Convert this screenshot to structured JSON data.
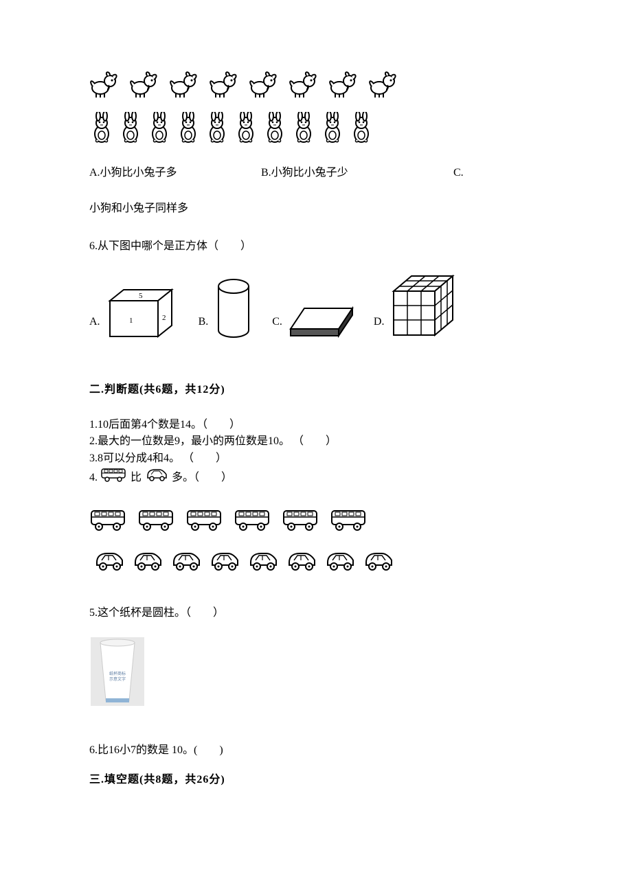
{
  "q5": {
    "dog_count": 8,
    "rabbit_count": 10,
    "opt_a": "A.小狗比小兔子多",
    "opt_b": "B.小狗比小兔子少",
    "opt_c_prefix": "C.",
    "opt_c_rest": "小狗和小兔子同样多"
  },
  "q6": {
    "text": "6.从下图中哪个是正方体（　　）",
    "labels": {
      "a": "A.",
      "b": "B.",
      "c": "C.",
      "d": "D."
    }
  },
  "section2": {
    "title": "二.判断题(共6题，共12分)",
    "q1": "1.10后面第4个数是14。（　　）",
    "q2": "2.最大的一位数是9，最小的两位数是10。 （　　）",
    "q3": "3.8可以分成4和4。 （　　）",
    "q4_prefix": "4.",
    "q4_mid": "比",
    "q4_suffix": "多。（　　）",
    "bus_count": 6,
    "car_count": 8,
    "q5": "5.这个纸杯是圆柱。（　　）",
    "q6": "6.比16小7的数是 10。(　　)"
  },
  "section3": {
    "title": "三.填空题(共8题，共26分)"
  },
  "colors": {
    "text": "#000000",
    "background": "#ffffff",
    "cup_blue": "#8fb4d6",
    "cup_gray": "#cfd6dc"
  }
}
